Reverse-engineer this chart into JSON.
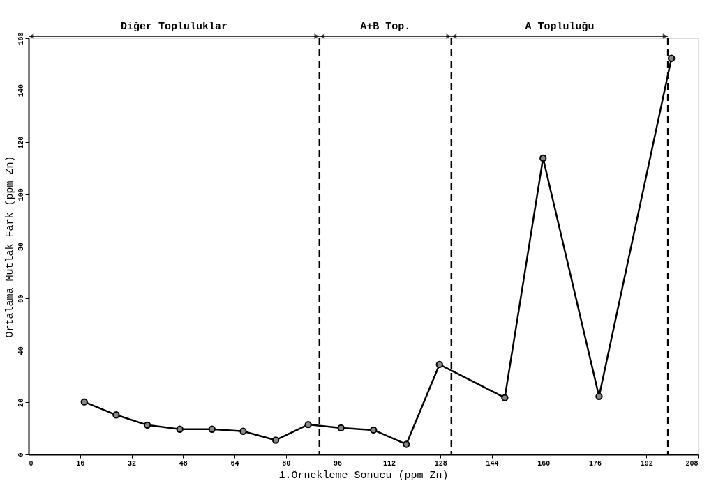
{
  "chart_data": {
    "type": "line",
    "xlabel": "1.Örnekleme Sonucu (ppm Zn)",
    "ylabel": "Ortalama Mutlak Fark (ppm Zn)",
    "x": [
      17.3,
      27.2,
      36.9,
      47.0,
      57.0,
      66.7,
      76.8,
      86.9,
      97.1,
      107.2,
      117.4,
      127.7,
      148.0,
      159.9,
      177.3,
      199.8
    ],
    "series": [
      {
        "color": "#000000",
        "values": [
          20.2,
          15.2,
          11.3,
          9.7,
          9.7,
          8.9,
          5.5,
          11.5,
          10.2,
          9.4,
          3.9,
          34.6,
          21.8,
          113.9,
          22.3,
          152.3
        ]
      }
    ],
    "xlim": [
      0,
      208
    ],
    "xticks": [
      0,
      16,
      32,
      48,
      64,
      80,
      96,
      112,
      128,
      144,
      160,
      176,
      192,
      208
    ],
    "ylim": [
      0,
      160
    ],
    "yticks": [
      0,
      20,
      40,
      60,
      80,
      100,
      120,
      140,
      160
    ],
    "ref_lines": [
      {
        "axis": "x",
        "value": 90.4,
        "line_style": "dashed"
      },
      {
        "axis": "x",
        "value": 131.4,
        "line_style": "dashed"
      },
      {
        "axis": "x",
        "value": 198.7,
        "line_style": "dashed"
      }
    ],
    "annotations": [
      "Diğer Topluluklar",
      "A+B Top.",
      "A Topluluğu"
    ],
    "marker": "circle",
    "line_style": "solid",
    "grid": false
  }
}
